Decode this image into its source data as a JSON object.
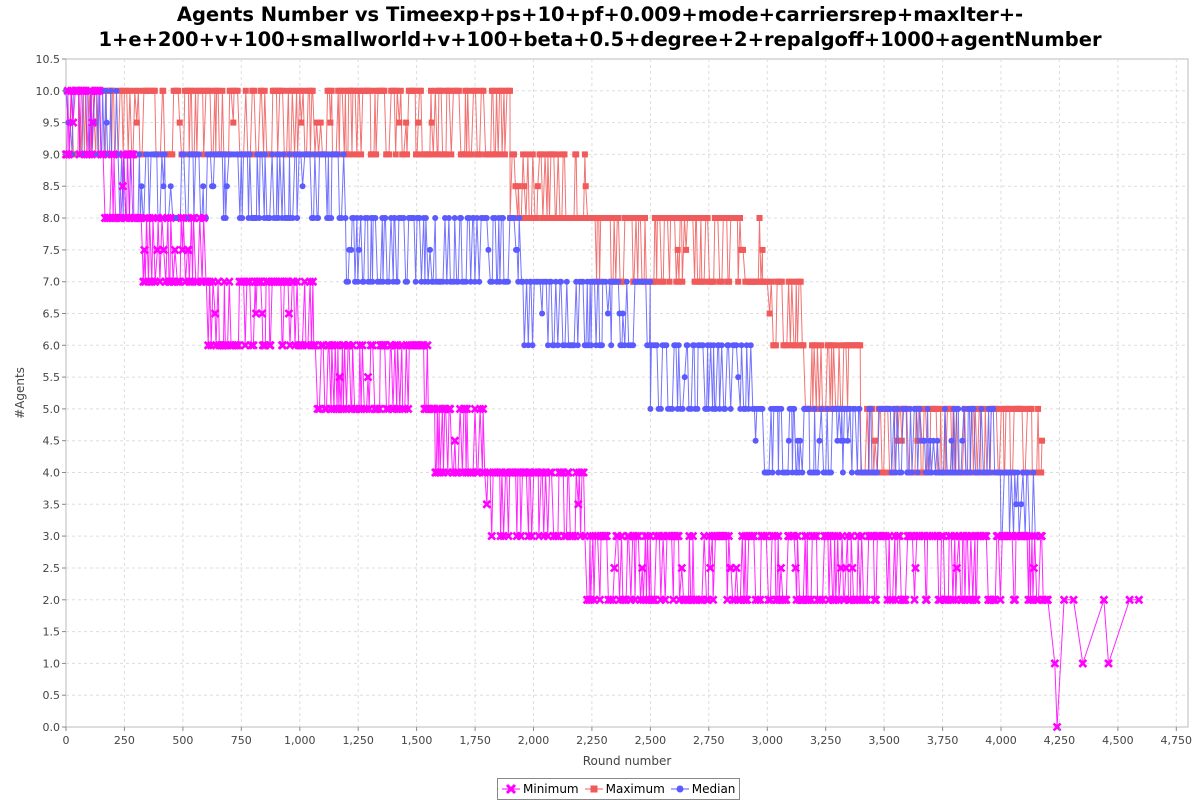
{
  "chart_data": {
    "type": "line",
    "title_lines": [
      "Agents Number vs Timeexp+ps+10+pf+0.009+mode+carriersrep+maxIter+-",
      "1+e+200+v+100+smallworld+v+100+beta+0.5+degree+2+repalgoff+1000+agentNumber"
    ],
    "xlabel": "Round number",
    "ylabel": "#Agents",
    "xlim": [
      0,
      4800
    ],
    "ylim": [
      0,
      10.5
    ],
    "xticks": [
      0,
      250,
      500,
      750,
      1000,
      1250,
      1500,
      1750,
      2000,
      2250,
      2500,
      2750,
      3000,
      3250,
      3500,
      3750,
      4000,
      4250,
      4500,
      4750
    ],
    "xtick_labels": [
      "0",
      "250",
      "500",
      "750",
      "1,000",
      "1,250",
      "1,500",
      "1,750",
      "2,000",
      "2,250",
      "2,500",
      "2,750",
      "3,000",
      "3,250",
      "3,500",
      "3,750",
      "4,000",
      "4,250",
      "4,500",
      "4,750"
    ],
    "yticks": [
      0,
      0.5,
      1,
      1.5,
      2,
      2.5,
      3,
      3.5,
      4,
      4.5,
      5,
      5.5,
      6,
      6.5,
      7,
      7.5,
      8,
      8.5,
      9,
      9.5,
      10,
      10.5
    ],
    "ytick_labels": [
      "0.0",
      "0.5",
      "1.0",
      "1.5",
      "2.0",
      "2.5",
      "3.0",
      "3.5",
      "4.0",
      "4.5",
      "5.0",
      "5.5",
      "6.0",
      "6.5",
      "7.0",
      "7.5",
      "8.0",
      "8.5",
      "9.0",
      "9.5",
      "10.0",
      "10.5"
    ],
    "grid": true,
    "legend_position": "bottom-center",
    "series": [
      {
        "name": "Maximum",
        "color": "#f05a5a",
        "marker": "square",
        "segments": [
          {
            "x_start": 0,
            "x_end": 1900,
            "high": 10,
            "low": 9
          },
          {
            "x_start": 1900,
            "x_end": 2270,
            "high": 9,
            "low": 8
          },
          {
            "x_start": 2270,
            "x_end": 2980,
            "high": 8,
            "low": 7
          },
          {
            "x_start": 2980,
            "x_end": 3150,
            "high": 7,
            "low": 6
          },
          {
            "x_start": 3150,
            "x_end": 3400,
            "high": 6,
            "low": 5
          },
          {
            "x_start": 3400,
            "x_end": 4180,
            "high": 5,
            "low": 4
          }
        ]
      },
      {
        "name": "Minimum",
        "color": "#ff00ff",
        "marker": "x",
        "segments": [
          {
            "x_start": 0,
            "x_end": 150,
            "high": 10,
            "low": 9
          },
          {
            "x_start": 150,
            "x_end": 290,
            "high": 9,
            "low": 8
          },
          {
            "x_start": 290,
            "x_end": 600,
            "high": 8,
            "low": 7
          },
          {
            "x_start": 600,
            "x_end": 1060,
            "high": 7,
            "low": 6
          },
          {
            "x_start": 1060,
            "x_end": 1550,
            "high": 6,
            "low": 5
          },
          {
            "x_start": 1550,
            "x_end": 1800,
            "high": 5,
            "low": 4
          },
          {
            "x_start": 1800,
            "x_end": 2220,
            "high": 4,
            "low": 3
          },
          {
            "x_start": 2220,
            "x_end": 4200,
            "high": 3,
            "low": 2
          }
        ],
        "tail_points": [
          [
            4200,
            2
          ],
          [
            4230,
            1
          ],
          [
            4240,
            0
          ],
          [
            4270,
            2
          ],
          [
            4310,
            2
          ],
          [
            4350,
            1
          ],
          [
            4440,
            2
          ],
          [
            4460,
            1
          ],
          [
            4550,
            2
          ],
          [
            4590,
            2
          ]
        ]
      },
      {
        "name": "Median",
        "color": "#5a5aff",
        "marker": "circle",
        "segments": [
          {
            "x_start": 0,
            "x_end": 230,
            "high": 10,
            "low": 9
          },
          {
            "x_start": 230,
            "x_end": 1200,
            "high": 9,
            "low": 8
          },
          {
            "x_start": 1200,
            "x_end": 1950,
            "high": 8,
            "low": 7
          },
          {
            "x_start": 1950,
            "x_end": 2500,
            "high": 7,
            "low": 6
          },
          {
            "x_start": 2500,
            "x_end": 2950,
            "high": 6,
            "low": 5
          },
          {
            "x_start": 2950,
            "x_end": 4000,
            "high": 5,
            "low": 4
          },
          {
            "x_start": 4000,
            "x_end": 4150,
            "high": 4,
            "low": 3
          }
        ]
      }
    ]
  }
}
